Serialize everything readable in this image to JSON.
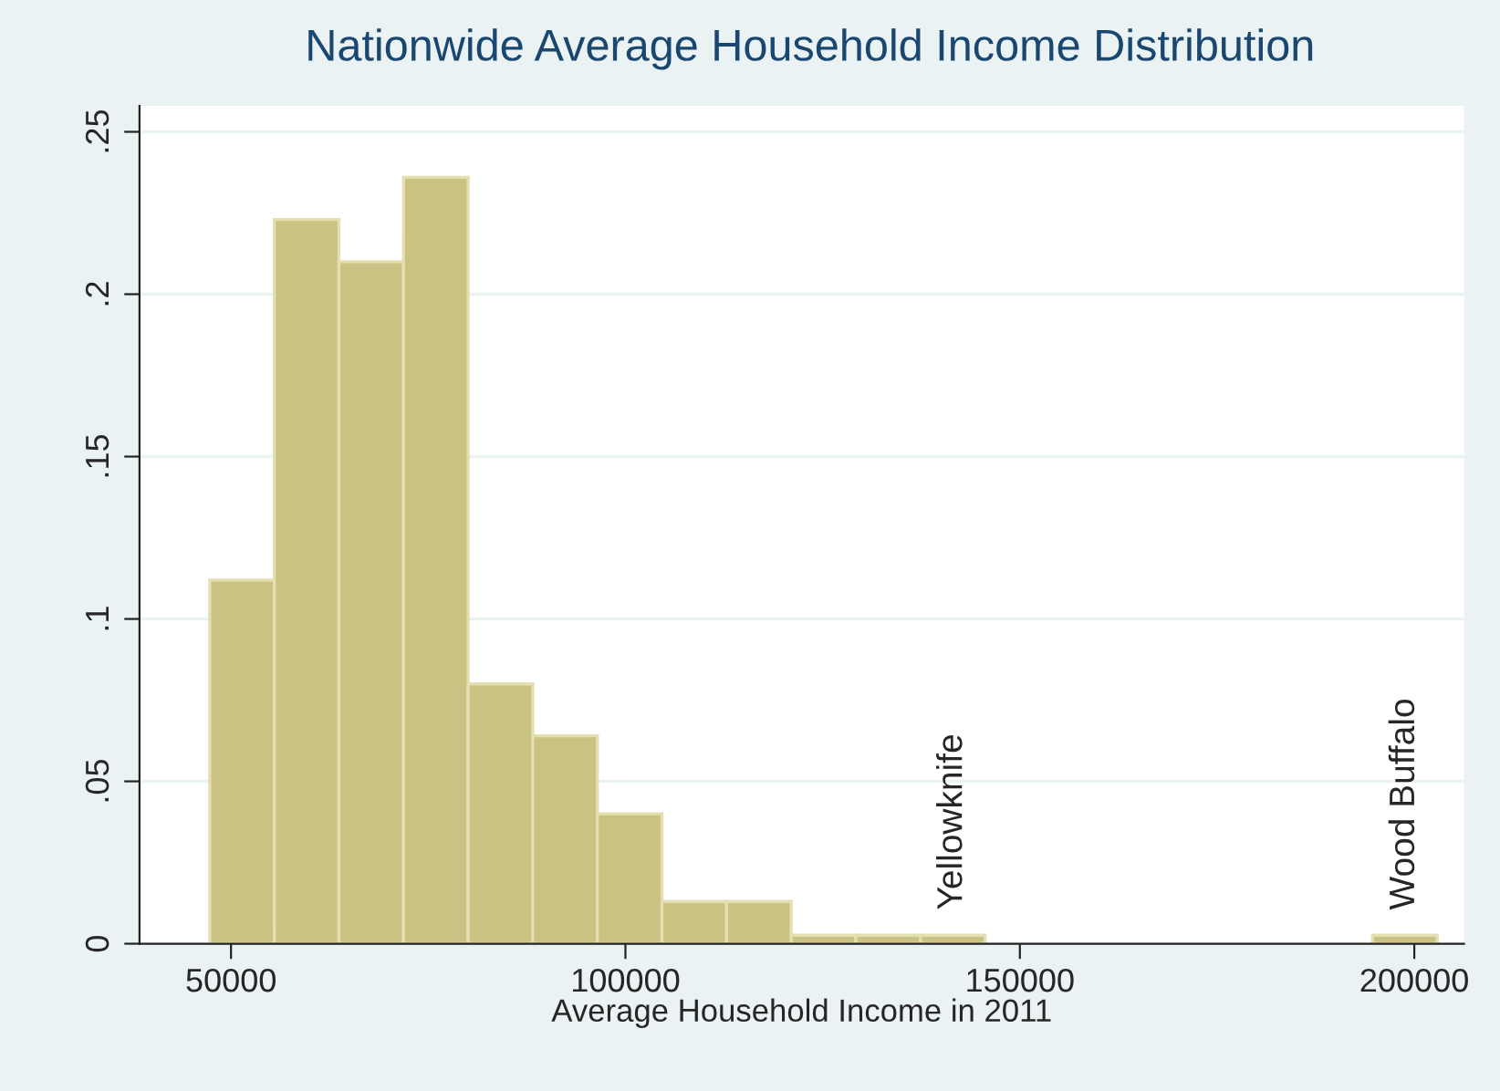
{
  "chart_data": {
    "type": "histogram",
    "title": "Nationwide Average Household Income Distribution",
    "xlabel": "Average Household Income in 2011",
    "bins": [
      47300,
      55490,
      63680,
      71870,
      80060,
      88250,
      96440,
      104630,
      112820,
      121010,
      129200,
      137390,
      145580,
      153770,
      161960,
      170150,
      178340,
      186530,
      194720,
      202910
    ],
    "values": [
      0.112,
      0.223,
      0.21,
      0.236,
      0.08,
      0.064,
      0.04,
      0.013,
      0.013,
      0.0026,
      0.0026,
      0.0026,
      0,
      0,
      0,
      0,
      0,
      0,
      0.0026
    ],
    "color": "#cac283",
    "xlim": [
      38400,
      206300
    ],
    "ylim": [
      0,
      0.258
    ],
    "xticks": [
      50000,
      100000,
      150000,
      200000
    ],
    "yticks": [
      {
        "value": 0,
        "label": "0"
      },
      {
        "value": 0.05,
        "label": ".05"
      },
      {
        "value": 0.1,
        "label": ".1"
      },
      {
        "value": 0.15,
        "label": ".15"
      },
      {
        "value": 0.2,
        "label": ".2"
      },
      {
        "value": 0.25,
        "label": ".25"
      }
    ],
    "grid": "y",
    "annotations": [
      {
        "text": "Yellowknife",
        "x": 141485,
        "y": 0.0026
      },
      {
        "text": "Wood Buffalo",
        "x": 198815,
        "y": 0.0026
      }
    ]
  }
}
